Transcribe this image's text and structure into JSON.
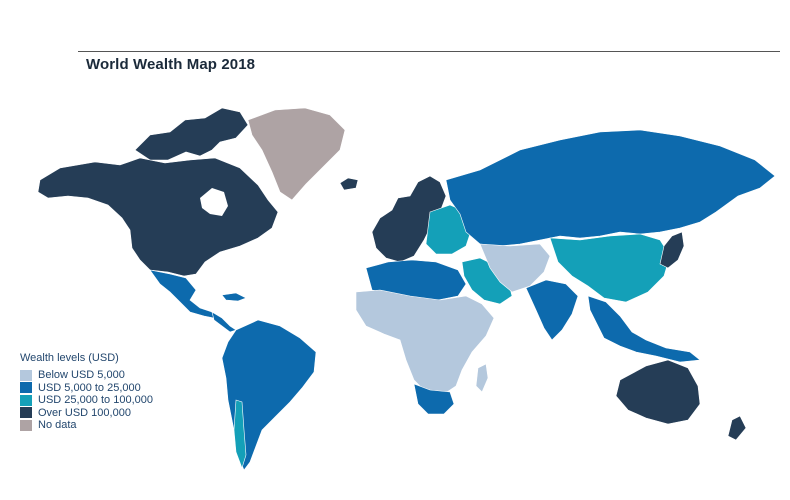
{
  "header": {
    "title": "World Wealth Map 2018"
  },
  "legend": {
    "title": "Wealth levels (USD)",
    "items": [
      {
        "label": "Below USD 5,000",
        "color": "#b4c8dd"
      },
      {
        "label": "USD 5,000 to 25,000",
        "color": "#0d6aad"
      },
      {
        "label": "USD 25,000 to 100,000",
        "color": "#14a0b8"
      },
      {
        "label": "Over USD 100,000",
        "color": "#253d56"
      },
      {
        "label": "No data",
        "color": "#aea3a4"
      }
    ]
  },
  "colors": {
    "below_5k": "#b4c8dd",
    "5k_25k": "#0d6aad",
    "25k_100k": "#14a0b8",
    "over_100k": "#253d56",
    "no_data": "#aea3a4"
  },
  "regions": [
    {
      "name": "North America",
      "level": "over_100k"
    },
    {
      "name": "Greenland",
      "level": "no_data"
    },
    {
      "name": "Mexico",
      "level": "5k_25k"
    },
    {
      "name": "Central America",
      "level": "5k_25k"
    },
    {
      "name": "South America",
      "level": "5k_25k"
    },
    {
      "name": "Chile",
      "level": "25k_100k"
    },
    {
      "name": "Western Europe",
      "level": "over_100k"
    },
    {
      "name": "Eastern Europe",
      "level": "25k_100k"
    },
    {
      "name": "Russia",
      "level": "5k_25k"
    },
    {
      "name": "North Africa",
      "level": "5k_25k"
    },
    {
      "name": "Sub-Saharan Africa",
      "level": "below_5k"
    },
    {
      "name": "South Africa",
      "level": "5k_25k"
    },
    {
      "name": "Middle East",
      "level": "25k_100k"
    },
    {
      "name": "Central Asia",
      "level": "below_5k"
    },
    {
      "name": "India",
      "level": "5k_25k"
    },
    {
      "name": "China",
      "level": "25k_100k"
    },
    {
      "name": "Japan",
      "level": "over_100k"
    },
    {
      "name": "Southeast Asia",
      "level": "5k_25k"
    },
    {
      "name": "Australia",
      "level": "over_100k"
    },
    {
      "name": "New Zealand",
      "level": "over_100k"
    },
    {
      "name": "Iceland",
      "level": "over_100k"
    },
    {
      "name": "Madagascar",
      "level": "below_5k"
    }
  ]
}
